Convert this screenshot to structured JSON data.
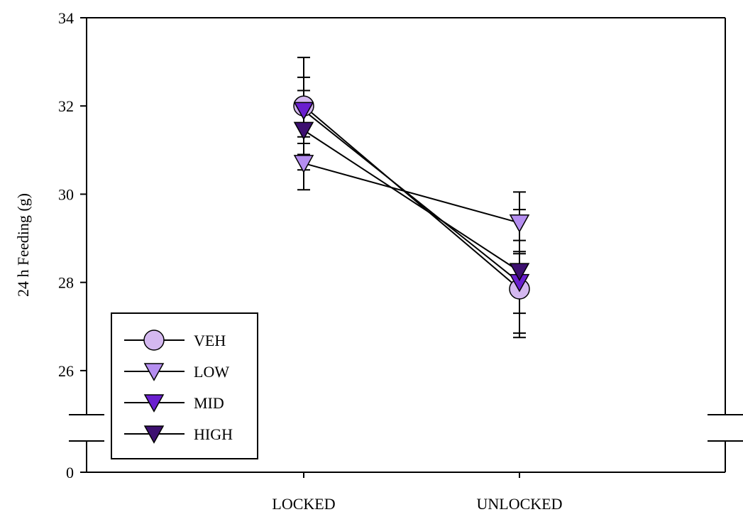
{
  "chart_data": {
    "type": "line",
    "title": "",
    "xlabel": "",
    "ylabel": "24 h Feeding (g)",
    "categories": [
      "LOCKED",
      "UNLOCKED"
    ],
    "y_axis": {
      "ylim_upper": [
        25.0,
        34
      ],
      "ylim_lower": [
        0,
        0
      ],
      "ticks": [
        26,
        28,
        30,
        32,
        34
      ],
      "lower_ticks": [
        0
      ],
      "broken": true
    },
    "grid": false,
    "legend_position": "bottom-left",
    "series": [
      {
        "name": "VEH",
        "values": [
          32.0,
          27.85
        ],
        "errors": [
          1.1,
          1.1
        ],
        "marker": "circle",
        "fill": "#d4b8f0"
      },
      {
        "name": "LOW",
        "values": [
          30.7,
          29.35
        ],
        "errors": [
          0.6,
          0.7
        ],
        "marker": "triangle-down",
        "fill": "#b58ef0"
      },
      {
        "name": "MID",
        "values": [
          31.9,
          28.0
        ],
        "errors": [
          0.75,
          0.7
        ],
        "marker": "triangle-down",
        "fill": "#6a1fcf"
      },
      {
        "name": "HIGH",
        "values": [
          31.45,
          28.25
        ],
        "errors": [
          0.9,
          1.4
        ],
        "marker": "triangle-down",
        "fill": "#3d1070"
      }
    ]
  }
}
